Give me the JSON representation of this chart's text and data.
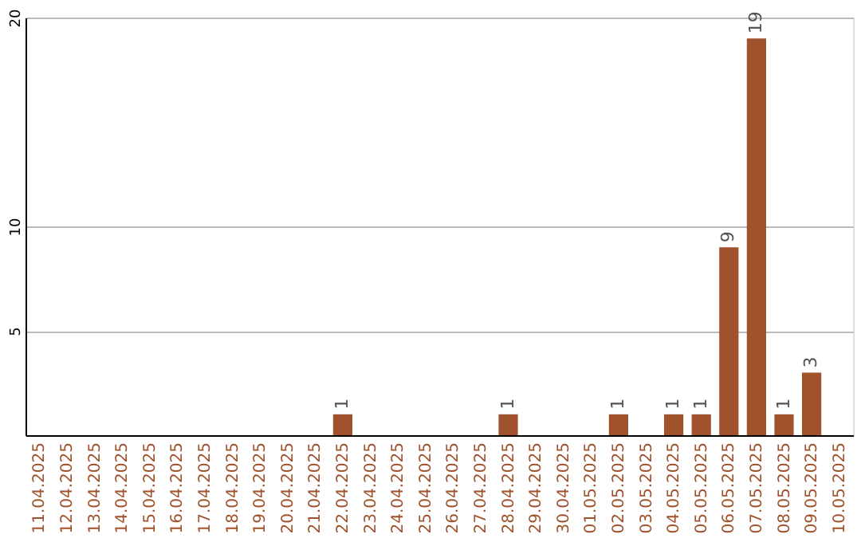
{
  "chart_data": {
    "type": "bar",
    "categories": [
      "11.04.2025",
      "12.04.2025",
      "13.04.2025",
      "14.04.2025",
      "15.04.2025",
      "16.04.2025",
      "17.04.2025",
      "18.04.2025",
      "19.04.2025",
      "20.04.2025",
      "21.04.2025",
      "22.04.2025",
      "23.04.2025",
      "24.04.2025",
      "25.04.2025",
      "26.04.2025",
      "27.04.2025",
      "28.04.2025",
      "29.04.2025",
      "30.04.2025",
      "01.05.2025",
      "02.05.2025",
      "03.05.2025",
      "04.05.2025",
      "05.05.2025",
      "06.05.2025",
      "07.05.2025",
      "08.05.2025",
      "09.05.2025",
      "10.05.2025"
    ],
    "values": [
      null,
      null,
      null,
      null,
      null,
      null,
      null,
      null,
      null,
      null,
      null,
      1,
      null,
      null,
      null,
      null,
      null,
      1,
      null,
      null,
      null,
      1,
      null,
      1,
      1,
      9,
      19,
      1,
      3,
      null
    ],
    "color": "#a0522d",
    "ylim": [
      0,
      20
    ],
    "yticks": [
      5,
      10,
      20
    ],
    "grid": "y",
    "data_labels": true
  }
}
